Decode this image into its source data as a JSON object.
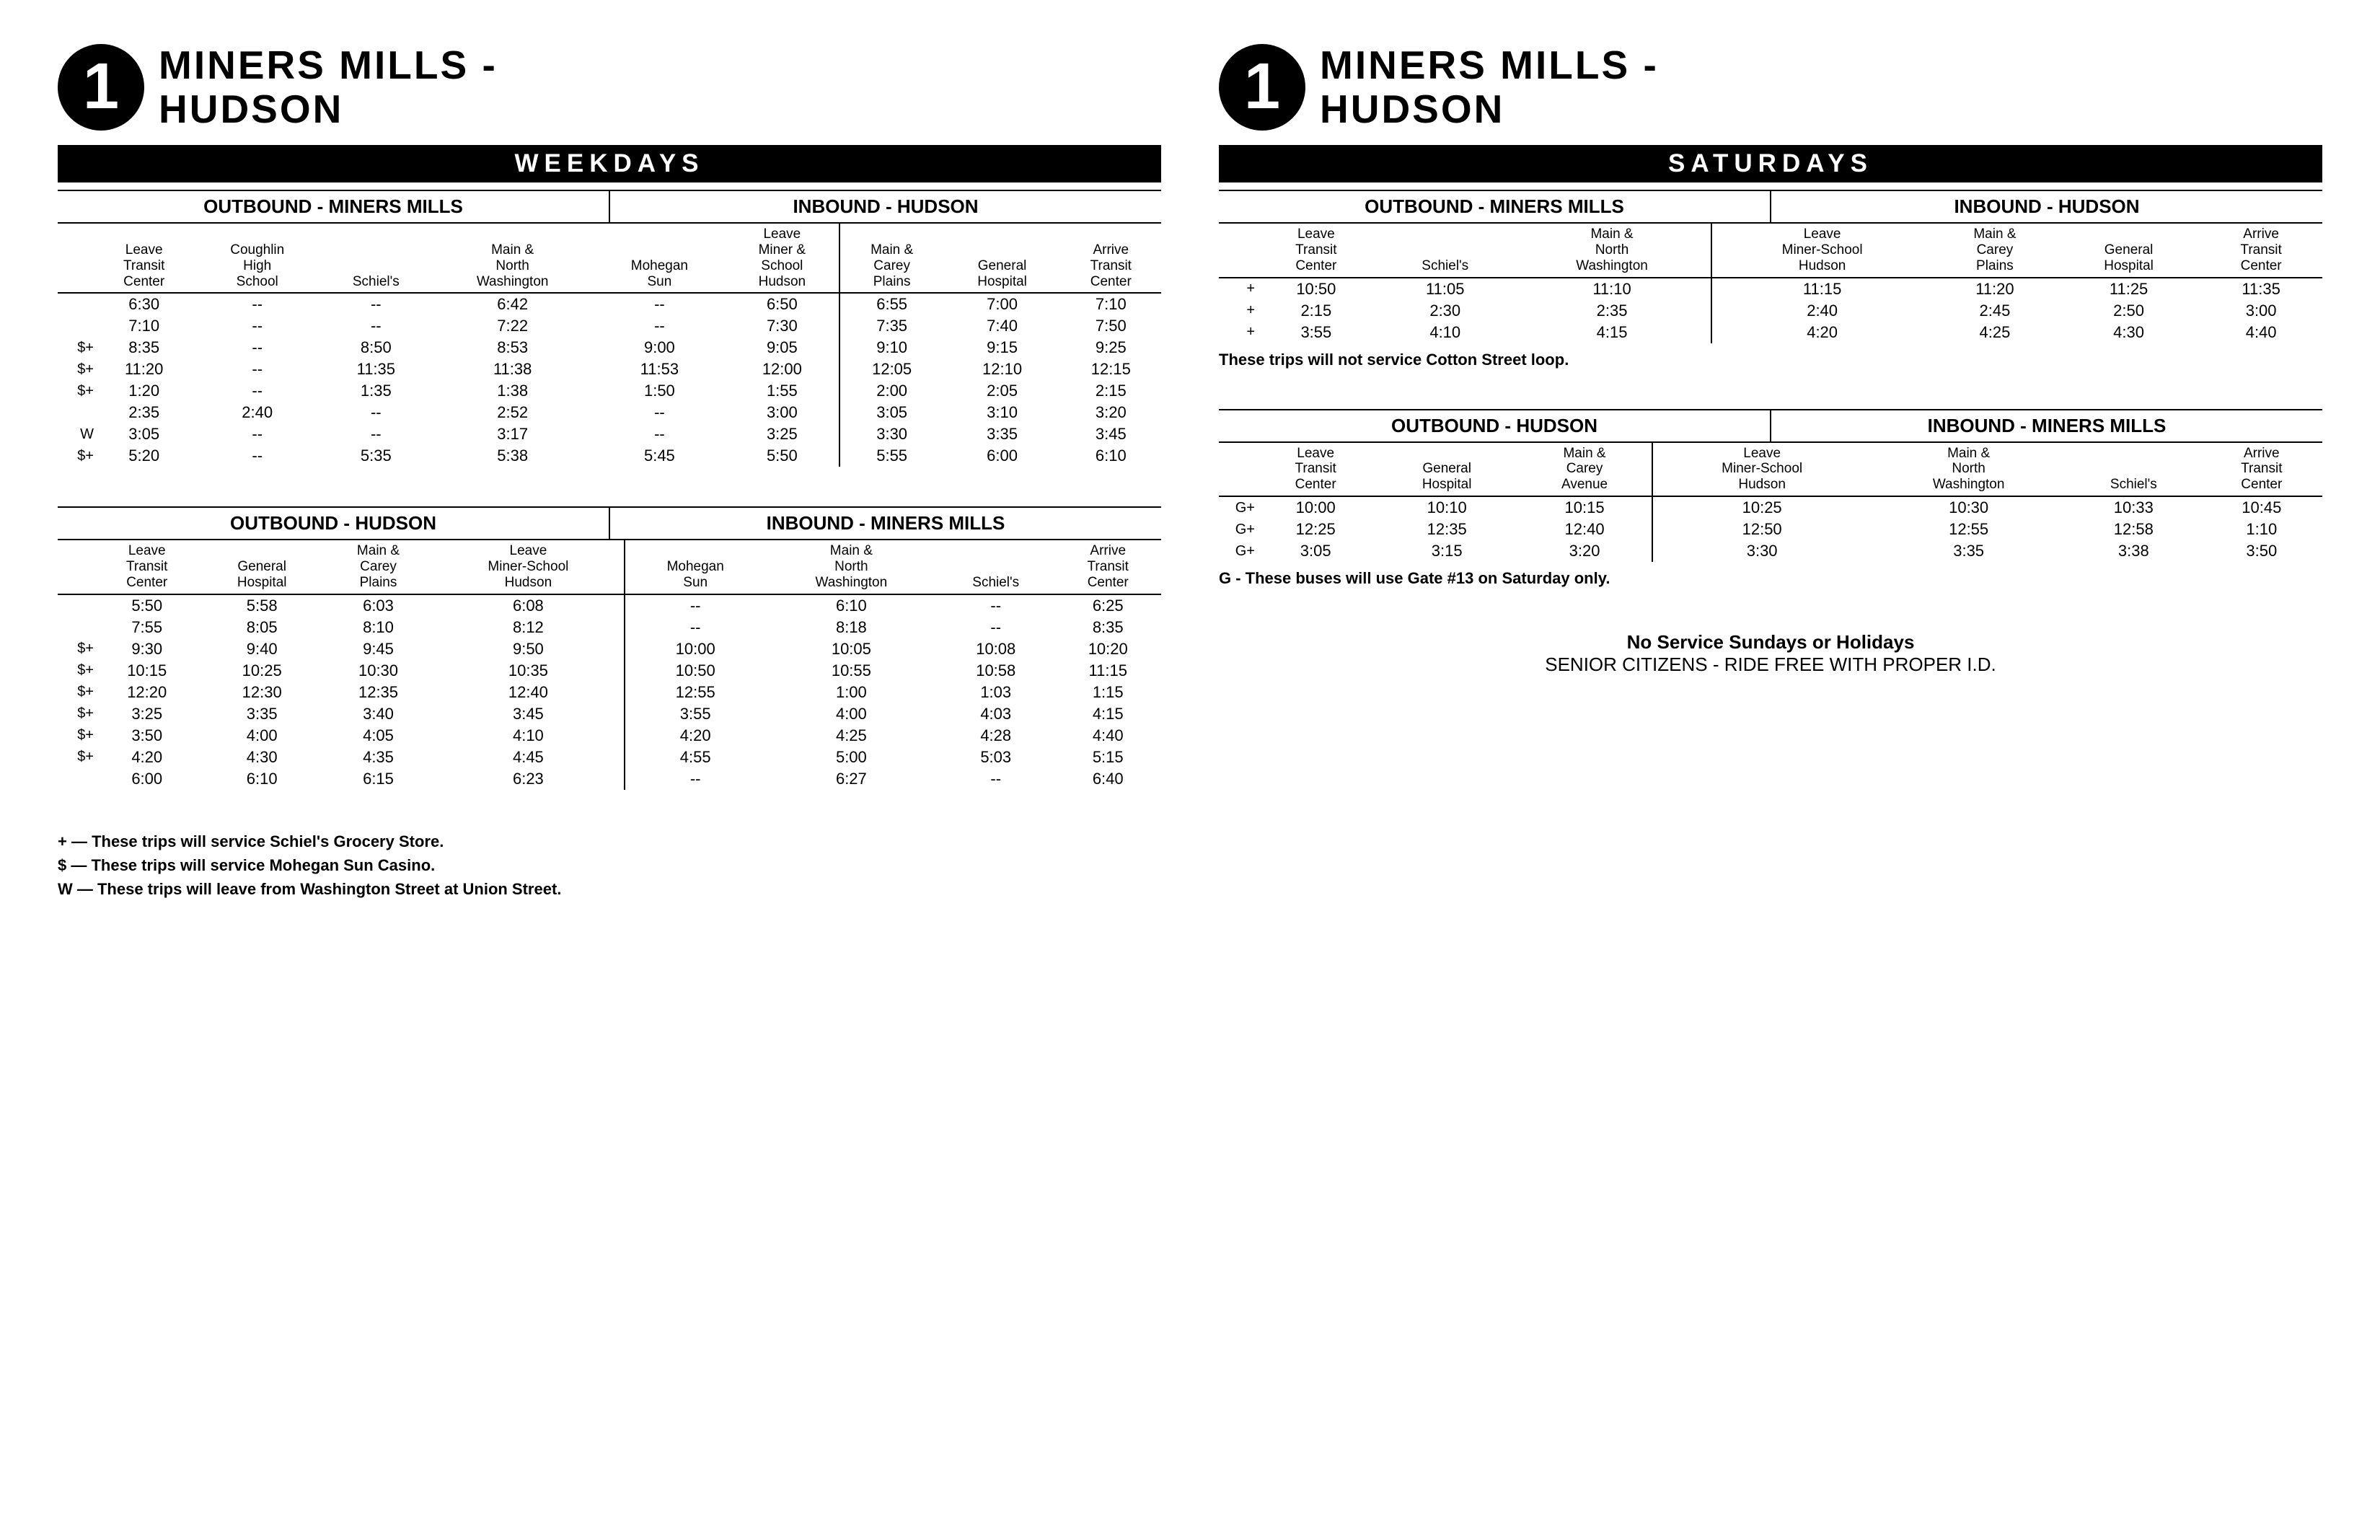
{
  "route_number": "1",
  "route_name": "MINERS MILLS - HUDSON",
  "weekday_label": "WEEKDAYS",
  "saturday_label": "SATURDAYS",
  "weekday_top": {
    "outbound_title": "OUTBOUND - MINERS MILLS",
    "inbound_title": "INBOUND - HUDSON",
    "outbound_cols": [
      "Leave Transit Center",
      "Coughlin High School",
      "Schiel's",
      "Main & North Washington",
      "Mohegan Sun",
      "Leave Miner & School Hudson"
    ],
    "inbound_cols": [
      "Main & Carey Plains",
      "General Hospital",
      "Arrive Transit Center"
    ],
    "rows": [
      [
        "",
        "6:30",
        "--",
        "--",
        "6:42",
        "--",
        "6:50",
        "6:55",
        "7:00",
        "7:10"
      ],
      [
        "",
        "7:10",
        "--",
        "--",
        "7:22",
        "--",
        "7:30",
        "7:35",
        "7:40",
        "7:50"
      ],
      [
        "$+",
        "8:35",
        "--",
        "8:50",
        "8:53",
        "9:00",
        "9:05",
        "9:10",
        "9:15",
        "9:25"
      ],
      [
        "$+",
        "11:20",
        "--",
        "11:35",
        "11:38",
        "11:53",
        "12:00",
        "12:05",
        "12:10",
        "12:15"
      ],
      [
        "$+",
        "1:20",
        "--",
        "1:35",
        "1:38",
        "1:50",
        "1:55",
        "2:00",
        "2:05",
        "2:15"
      ],
      [
        "",
        "2:35",
        "2:40",
        "--",
        "2:52",
        "--",
        "3:00",
        "3:05",
        "3:10",
        "3:20"
      ],
      [
        "W",
        "3:05",
        "--",
        "--",
        "3:17",
        "--",
        "3:25",
        "3:30",
        "3:35",
        "3:45"
      ],
      [
        "$+",
        "5:20",
        "--",
        "5:35",
        "5:38",
        "5:45",
        "5:50",
        "5:55",
        "6:00",
        "6:10"
      ]
    ]
  },
  "weekday_bottom": {
    "outbound_title": "OUTBOUND - HUDSON",
    "inbound_title": "INBOUND - MINERS MILLS",
    "outbound_cols": [
      "Leave Transit Center",
      "General Hospital",
      "Main & Carey Plains",
      "Leave Miner-School Hudson"
    ],
    "inbound_cols": [
      "Mohegan Sun",
      "Main & North Washington",
      "Schiel's",
      "Arrive Transit Center"
    ],
    "rows": [
      [
        "",
        "5:50",
        "5:58",
        "6:03",
        "6:08",
        "--",
        "6:10",
        "--",
        "6:25"
      ],
      [
        "",
        "7:55",
        "8:05",
        "8:10",
        "8:12",
        "--",
        "8:18",
        "--",
        "8:35"
      ],
      [
        "$+",
        "9:30",
        "9:40",
        "9:45",
        "9:50",
        "10:00",
        "10:05",
        "10:08",
        "10:20"
      ],
      [
        "$+",
        "10:15",
        "10:25",
        "10:30",
        "10:35",
        "10:50",
        "10:55",
        "10:58",
        "11:15"
      ],
      [
        "$+",
        "12:20",
        "12:30",
        "12:35",
        "12:40",
        "12:55",
        "1:00",
        "1:03",
        "1:15"
      ],
      [
        "$+",
        "3:25",
        "3:35",
        "3:40",
        "3:45",
        "3:55",
        "4:00",
        "4:03",
        "4:15"
      ],
      [
        "$+",
        "3:50",
        "4:00",
        "4:05",
        "4:10",
        "4:20",
        "4:25",
        "4:28",
        "4:40"
      ],
      [
        "$+",
        "4:20",
        "4:30",
        "4:35",
        "4:45",
        "4:55",
        "5:00",
        "5:03",
        "5:15"
      ],
      [
        "",
        "6:00",
        "6:10",
        "6:15",
        "6:23",
        "--",
        "6:27",
        "--",
        "6:40"
      ]
    ]
  },
  "saturday_top": {
    "outbound_title": "OUTBOUND - MINERS MILLS",
    "inbound_title": "INBOUND - HUDSON",
    "outbound_cols": [
      "Leave Transit Center",
      "Schiel's",
      "Main & North Washington"
    ],
    "inbound_cols": [
      "Leave Miner-School Hudson",
      "Main & Carey Plains",
      "General Hospital",
      "Arrive Transit Center"
    ],
    "rows": [
      [
        "+",
        "10:50",
        "11:05",
        "11:10",
        "11:15",
        "11:20",
        "11:25",
        "11:35"
      ],
      [
        "+",
        "2:15",
        "2:30",
        "2:35",
        "2:40",
        "2:45",
        "2:50",
        "3:00"
      ],
      [
        "+",
        "3:55",
        "4:10",
        "4:15",
        "4:20",
        "4:25",
        "4:30",
        "4:40"
      ]
    ],
    "note": "These trips will not service Cotton Street loop."
  },
  "saturday_bottom": {
    "outbound_title": "OUTBOUND - HUDSON",
    "inbound_title": "INBOUND - MINERS MILLS",
    "outbound_cols": [
      "Leave Transit Center",
      "General Hospital",
      "Main & Carey Avenue"
    ],
    "inbound_cols": [
      "Leave Miner-School Hudson",
      "Main & North Washington",
      "Schiel's",
      "Arrive Transit Center"
    ],
    "rows": [
      [
        "G+",
        "10:00",
        "10:10",
        "10:15",
        "10:25",
        "10:30",
        "10:33",
        "10:45"
      ],
      [
        "G+",
        "12:25",
        "12:35",
        "12:40",
        "12:50",
        "12:55",
        "12:58",
        "1:10"
      ],
      [
        "G+",
        "3:05",
        "3:15",
        "3:20",
        "3:30",
        "3:35",
        "3:38",
        "3:50"
      ]
    ],
    "note": "G - These buses will use Gate #13 on Saturday only."
  },
  "legend": [
    "+ — These trips will service Schiel's Grocery Store.",
    "$ — These trips will service Mohegan Sun Casino.",
    "W — These trips will leave from Washington Street at Union Street."
  ],
  "footer": {
    "line1": "No Service Sundays or Holidays",
    "line2": "SENIOR CITIZENS - RIDE FREE WITH PROPER I.D."
  }
}
